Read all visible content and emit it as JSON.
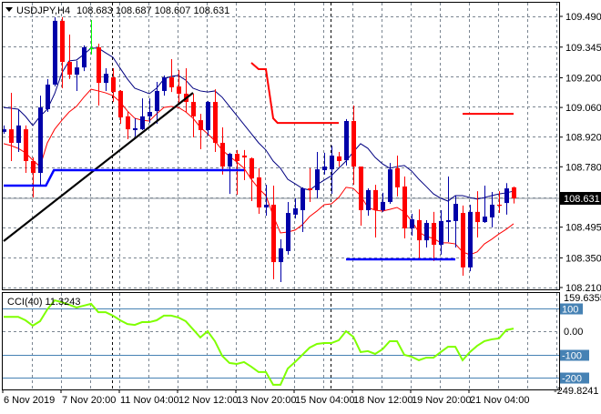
{
  "header": {
    "symbol": "USDJPY,H4",
    "ohlc": "108.683 108.687 108.607 108.631"
  },
  "colors": {
    "bull": "#0000a8",
    "bear": "#ff0000",
    "doji": "#00ff00",
    "ma_blue": "#000080",
    "ma_red": "#ff0000",
    "trendline": "#000000",
    "support_line": "#0000ff",
    "resistance_line": "#ff0000",
    "cci": "#7fff00",
    "cci_levels": "#4682b4",
    "grid": "#7a8591",
    "price_tag_bg": "#000000"
  },
  "chart_data": [
    {
      "type": "candlestick",
      "ylim": [
        108.21,
        109.49
      ],
      "y_ticks": [
        "109.490",
        "109.345",
        "109.200",
        "109.060",
        "108.920",
        "108.780",
        "108.495",
        "108.350",
        "108.210"
      ],
      "current_price": "108.631",
      "x_tick_labels": [
        {
          "bar": 0,
          "label": "6 Nov 2019"
        },
        {
          "bar": 8,
          "label": "7 Nov 20:00"
        },
        {
          "bar": 16,
          "label": "11 Nov 04:00"
        },
        {
          "bar": 24,
          "label": "12 Nov 12:00"
        },
        {
          "bar": 32,
          "label": "13 Nov 20:00"
        },
        {
          "bar": 40,
          "label": "15 Nov 04:00"
        },
        {
          "bar": 48,
          "label": "18 Nov 12:00"
        },
        {
          "bar": 56,
          "label": "19 Nov 20:00"
        },
        {
          "bar": 64,
          "label": "21 Nov 04:00"
        }
      ],
      "separator_bars": [
        15,
        45
      ],
      "ohlc": [
        [
          108.945,
          108.975,
          108.936,
          108.957
        ],
        [
          108.957,
          109.129,
          108.807,
          108.893
        ],
        [
          108.893,
          109.052,
          108.85,
          108.975
        ],
        [
          108.957,
          108.975,
          108.751,
          108.807
        ],
        [
          108.807,
          108.824,
          108.635,
          108.751
        ],
        [
          108.751,
          109.116,
          108.695,
          109.06
        ],
        [
          109.052,
          109.194,
          109.039,
          109.168
        ],
        [
          109.168,
          109.486,
          109.159,
          109.469
        ],
        [
          109.469,
          109.486,
          109.151,
          109.275
        ],
        [
          109.275,
          109.404,
          109.194,
          109.215
        ],
        [
          109.215,
          109.28,
          109.138,
          109.249
        ],
        [
          109.249,
          109.353,
          109.232,
          109.344
        ],
        [
          109.34,
          109.473,
          109.31,
          109.34
        ],
        [
          109.344,
          109.361,
          109.069,
          109.176
        ],
        [
          109.176,
          109.245,
          109.138,
          109.219
        ],
        [
          109.202,
          109.245,
          109.086,
          109.133
        ],
        [
          109.138,
          109.142,
          108.983,
          109.013
        ],
        [
          109.018,
          109.039,
          108.91,
          108.957
        ],
        [
          108.953,
          109.009,
          108.923,
          108.962
        ],
        [
          108.957,
          109.103,
          108.953,
          109.018
        ],
        [
          109.018,
          109.103,
          108.987,
          109.039
        ],
        [
          109.043,
          109.181,
          108.983,
          109.138
        ],
        [
          109.138,
          109.211,
          109.116,
          109.202
        ],
        [
          109.202,
          109.288,
          109.133,
          109.155
        ],
        [
          109.159,
          109.237,
          109.082,
          109.125
        ],
        [
          109.125,
          109.245,
          109.035,
          109.086
        ],
        [
          109.086,
          109.125,
          108.919,
          109.018
        ],
        [
          109.0,
          109.03,
          108.863,
          108.953
        ],
        [
          108.953,
          109.091,
          108.927,
          109.086
        ],
        [
          109.086,
          109.146,
          108.85,
          108.893
        ],
        [
          108.893,
          108.966,
          108.743,
          108.781
        ],
        [
          108.781,
          108.846,
          108.652,
          108.841
        ],
        [
          108.841,
          108.859,
          108.648,
          108.807
        ],
        [
          108.833,
          108.859,
          108.717,
          108.824
        ],
        [
          108.82,
          108.824,
          108.618,
          108.725
        ],
        [
          108.73,
          108.773,
          108.558,
          108.588
        ],
        [
          108.588,
          108.695,
          108.549,
          108.601
        ],
        [
          108.601,
          108.691,
          108.249,
          108.33
        ],
        [
          108.33,
          108.438,
          108.236,
          108.395
        ],
        [
          108.382,
          108.614,
          108.365,
          108.562
        ],
        [
          108.554,
          108.631,
          108.536,
          108.584
        ],
        [
          108.575,
          108.683,
          108.472,
          108.678
        ],
        [
          108.678,
          108.773,
          108.614,
          108.67
        ],
        [
          108.67,
          108.85,
          108.631,
          108.768
        ],
        [
          108.764,
          108.846,
          108.743,
          108.781
        ],
        [
          108.768,
          108.88,
          108.652,
          108.833
        ],
        [
          108.829,
          108.85,
          108.781,
          108.807
        ],
        [
          108.811,
          109.005,
          108.786,
          108.996
        ],
        [
          108.996,
          109.069,
          108.695,
          108.781
        ],
        [
          108.781,
          108.781,
          108.502,
          108.575
        ],
        [
          108.575,
          108.678,
          108.549,
          108.67
        ],
        [
          108.67,
          108.695,
          108.446,
          108.575
        ],
        [
          108.575,
          108.657,
          108.567,
          108.614
        ],
        [
          108.614,
          108.798,
          108.605,
          108.768
        ],
        [
          108.773,
          108.833,
          108.64,
          108.683
        ],
        [
          108.687,
          108.734,
          108.442,
          108.489
        ],
        [
          108.489,
          108.558,
          108.455,
          108.532
        ],
        [
          108.528,
          108.579,
          108.343,
          108.433
        ],
        [
          108.433,
          108.528,
          108.399,
          108.515
        ],
        [
          108.515,
          108.567,
          108.335,
          108.412
        ],
        [
          108.412,
          108.575,
          108.365,
          108.524
        ],
        [
          108.519,
          108.734,
          108.425,
          108.528
        ],
        [
          108.524,
          108.644,
          108.399,
          108.605
        ],
        [
          108.562,
          108.597,
          108.266,
          108.305
        ],
        [
          108.305,
          108.601,
          108.287,
          108.567
        ],
        [
          108.567,
          108.665,
          108.446,
          108.519
        ],
        [
          108.519,
          108.691,
          108.515,
          108.545
        ],
        [
          108.541,
          108.661,
          108.494,
          108.601
        ],
        [
          108.601,
          108.665,
          108.562,
          108.597
        ],
        [
          108.609,
          108.703,
          108.554,
          108.678
        ],
        [
          108.683,
          108.687,
          108.607,
          108.631
        ]
      ],
      "ma_blue": [
        109.06,
        109.056,
        109.052,
        109.018,
        108.975,
        109.018,
        109.052,
        109.125,
        109.224,
        109.28,
        109.284,
        109.31,
        109.34,
        109.34,
        109.318,
        109.297,
        109.245,
        109.194,
        109.151,
        109.138,
        109.125,
        109.151,
        109.194,
        109.207,
        109.211,
        109.189,
        109.151,
        109.138,
        109.133,
        109.138,
        109.108,
        109.065,
        109.022,
        108.979,
        108.936,
        108.893,
        108.859,
        108.807,
        108.773,
        108.721,
        108.7,
        108.678,
        108.67,
        108.695,
        108.717,
        108.738,
        108.773,
        108.807,
        108.85,
        108.889,
        108.867,
        108.824,
        108.794,
        108.773,
        108.781,
        108.786,
        108.76,
        108.721,
        108.687,
        108.652,
        108.631,
        108.618,
        108.644,
        108.644,
        108.635,
        108.627,
        108.635,
        108.644,
        108.652,
        108.657,
        108.665
      ],
      "ma_red": [
        108.889,
        108.88,
        108.867,
        108.846,
        108.811,
        108.781,
        108.893,
        108.957,
        109.0,
        109.039,
        109.065,
        109.108,
        109.146,
        109.138,
        109.129,
        109.116,
        109.086,
        109.043,
        109.009,
        109.0,
        108.996,
        109.03,
        109.06,
        109.065,
        109.06,
        109.039,
        109.009,
        108.966,
        108.936,
        108.902,
        108.859,
        108.829,
        108.803,
        108.773,
        108.721,
        108.678,
        108.644,
        108.549,
        108.468,
        108.472,
        108.481,
        108.506,
        108.545,
        108.571,
        108.601,
        108.605,
        108.635,
        108.683,
        108.678,
        108.644,
        108.588,
        108.575,
        108.571,
        108.579,
        108.588,
        108.567,
        108.524,
        108.472,
        108.451,
        108.442,
        108.421,
        108.421,
        108.416,
        108.378,
        108.365,
        108.378,
        108.416,
        108.438,
        108.463,
        108.485,
        108.511
      ],
      "drawings": {
        "trendline": [
          [
            0,
            108.429
          ],
          [
            26,
            109.129
          ]
        ],
        "support_upper": [
          [
            0,
            108.691
          ],
          [
            5.8,
            108.691
          ],
          [
            6.9,
            108.764
          ],
          [
            33,
            108.764
          ]
        ],
        "support_lower": [
          [
            47,
            108.343
          ],
          [
            62,
            108.343
          ]
        ],
        "resistance_step": [
          [
            34,
            109.271
          ],
          [
            35,
            109.241
          ],
          [
            36,
            109.241
          ],
          [
            37,
            109.009
          ],
          [
            37.6,
            108.987
          ],
          [
            46,
            108.987
          ]
        ],
        "resistance_right": [
          [
            63,
            109.03
          ],
          [
            70,
            109.03
          ]
        ]
      }
    },
    {
      "type": "line",
      "indicator_label": "CCI(40) 11.3243",
      "ylim": [
        -249.8241,
        159.6355
      ],
      "y_tick_top": "159.6355",
      "y_tick_bottom": "-249.8241",
      "zero_label": "0.00",
      "levels": [
        {
          "value": 100,
          "label": "100"
        },
        {
          "value": -100,
          "label": "-100"
        },
        {
          "value": -200,
          "label": "-200"
        }
      ],
      "values": [
        62,
        62,
        62,
        47,
        24,
        43,
        94,
        133,
        125,
        114,
        102,
        110,
        118,
        82,
        82,
        67,
        47,
        31,
        27,
        39,
        39,
        47,
        67,
        67,
        59,
        43,
        8,
        -27,
        0,
        -43,
        -106,
        -137,
        -141,
        -133,
        -153,
        -176,
        -176,
        -231,
        -231,
        -161,
        -133,
        -102,
        -71,
        -55,
        -51,
        -51,
        -39,
        0,
        -24,
        -90,
        -86,
        -98,
        -78,
        -43,
        -43,
        -102,
        -110,
        -125,
        -114,
        -114,
        -90,
        -67,
        -67,
        -125,
        -90,
        -63,
        -43,
        -35,
        -31,
        5,
        11.3243
      ]
    }
  ]
}
